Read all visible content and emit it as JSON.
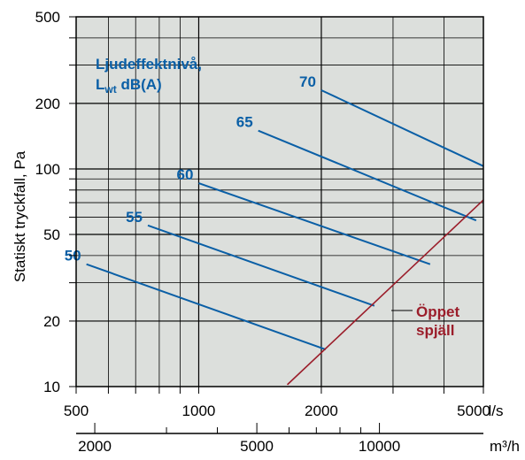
{
  "chart_data": {
    "type": "line",
    "ylabel": "Statiskt tryckfall, Pa",
    "x_unit": "l/s",
    "x2_unit": "m³/h",
    "x_scale": "log",
    "y_scale": "log",
    "xlim": [
      500,
      5000
    ],
    "ylim": [
      10,
      500
    ],
    "x_ticks": [
      "500",
      "1000",
      "2000",
      "5000"
    ],
    "x2_ticks": [
      "2000",
      "5000",
      "10000"
    ],
    "y_ticks": [
      "500",
      "200",
      "100",
      "50",
      "20",
      "10"
    ],
    "grid": true,
    "legend_title_line1": "Ljudeffektnivå,",
    "legend_title_sym": "L",
    "legend_title_sub": "wt",
    "legend_title_unit": " dB(A)",
    "series": [
      {
        "name": "50",
        "points": [
          [
            530,
            36.5
          ],
          [
            2050,
            14.8
          ]
        ]
      },
      {
        "name": "55",
        "points": [
          [
            750,
            55
          ],
          [
            2700,
            23.5
          ]
        ]
      },
      {
        "name": "60",
        "points": [
          [
            1000,
            86
          ],
          [
            3700,
            36.5
          ]
        ]
      },
      {
        "name": "65",
        "points": [
          [
            1400,
            150
          ],
          [
            4800,
            58
          ]
        ]
      },
      {
        "name": "70",
        "points": [
          [
            2000,
            230
          ],
          [
            5000,
            103
          ]
        ]
      }
    ],
    "damper": {
      "name_line1": "Öppet",
      "name_line2": "spjäll",
      "points": [
        [
          1650,
          10.2
        ],
        [
          5000,
          72
        ]
      ]
    },
    "colors": {
      "series": "#0a5fa6",
      "damper": "#9b1d2a",
      "plot_bg": "#dcdfdc",
      "grid": "#000000"
    }
  }
}
